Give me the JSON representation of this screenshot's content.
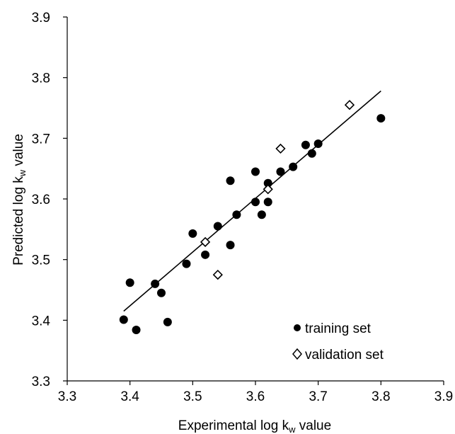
{
  "chart_data": {
    "type": "scatter",
    "xlabel_parts": [
      "Experimental  log k",
      "w",
      " value"
    ],
    "ylabel_parts": [
      "Predicted log k",
      "w",
      " value"
    ],
    "xlim": [
      3.3,
      3.9
    ],
    "ylim": [
      3.3,
      3.9
    ],
    "x_ticks": [
      "3.3",
      "3.4",
      "3.5",
      "3.6",
      "3.7",
      "3.8",
      "3.9"
    ],
    "y_ticks": [
      "3.3",
      "3.4",
      "3.5",
      "3.6",
      "3.7",
      "3.8",
      "3.9"
    ],
    "grid": false,
    "legend_position": "bottom-right",
    "series": [
      {
        "name": "training set",
        "marker": "filled-circle",
        "color": "#000000",
        "points": [
          [
            3.39,
            3.401
          ],
          [
            3.4,
            3.462
          ],
          [
            3.41,
            3.384
          ],
          [
            3.44,
            3.46
          ],
          [
            3.45,
            3.445
          ],
          [
            3.46,
            3.397
          ],
          [
            3.49,
            3.493
          ],
          [
            3.5,
            3.543
          ],
          [
            3.52,
            3.508
          ],
          [
            3.54,
            3.555
          ],
          [
            3.56,
            3.63
          ],
          [
            3.56,
            3.524
          ],
          [
            3.57,
            3.574
          ],
          [
            3.6,
            3.645
          ],
          [
            3.6,
            3.595
          ],
          [
            3.61,
            3.574
          ],
          [
            3.62,
            3.626
          ],
          [
            3.62,
            3.595
          ],
          [
            3.64,
            3.645
          ],
          [
            3.66,
            3.653
          ],
          [
            3.68,
            3.689
          ],
          [
            3.69,
            3.675
          ],
          [
            3.7,
            3.691
          ],
          [
            3.8,
            3.733
          ]
        ]
      },
      {
        "name": "validation set",
        "marker": "open-diamond",
        "color": "#000000",
        "points": [
          [
            3.52,
            3.529
          ],
          [
            3.54,
            3.475
          ],
          [
            3.62,
            3.616
          ],
          [
            3.64,
            3.683
          ],
          [
            3.75,
            3.755
          ]
        ]
      }
    ],
    "fit_line": {
      "x": [
        3.39,
        3.8
      ],
      "y": [
        3.415,
        3.778
      ],
      "color": "#000000"
    }
  }
}
